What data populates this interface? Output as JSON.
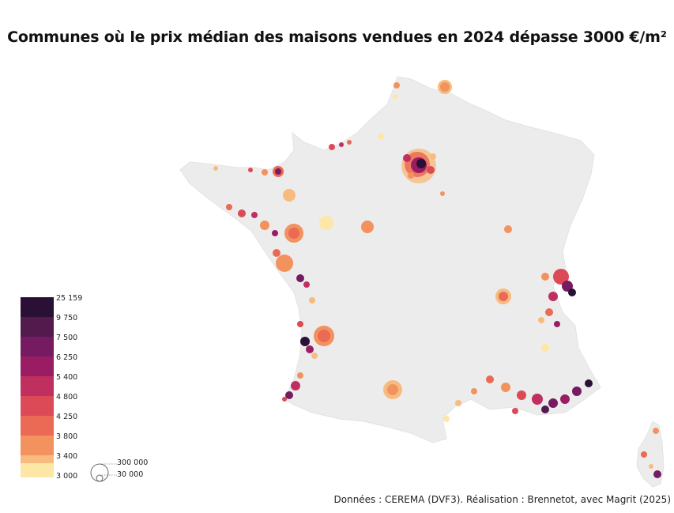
{
  "title": "Communes où le prix médian des maisons vendues en 2024 dépasse 3000 €/m²",
  "credit": "Données : CEREMA (DVF3). Réalisation : Brennetot, avec Magrit (2025)",
  "legend": {
    "classes": [
      {
        "label": "25 159",
        "color": "#2a1035"
      },
      {
        "label": "9 750",
        "color": "#531a4e"
      },
      {
        "label": "7 500",
        "color": "#761a61"
      },
      {
        "label": "6 250",
        "color": "#9a1d63"
      },
      {
        "label": "5 400",
        "color": "#bf2f5f"
      },
      {
        "label": "4 800",
        "color": "#db4a56"
      },
      {
        "label": "4 250",
        "color": "#ea6a55"
      },
      {
        "label": "3 800",
        "color": "#f2925f"
      },
      {
        "label": "3 400",
        "color": "#f8bb7f"
      },
      {
        "label": "3 000",
        "color": "#fde7a6"
      }
    ]
  },
  "size_legend": {
    "large_label": "300 000",
    "small_label": "30 000"
  },
  "colors": {
    "land": "#ececec",
    "land_stroke": "#e2e2e2"
  }
}
